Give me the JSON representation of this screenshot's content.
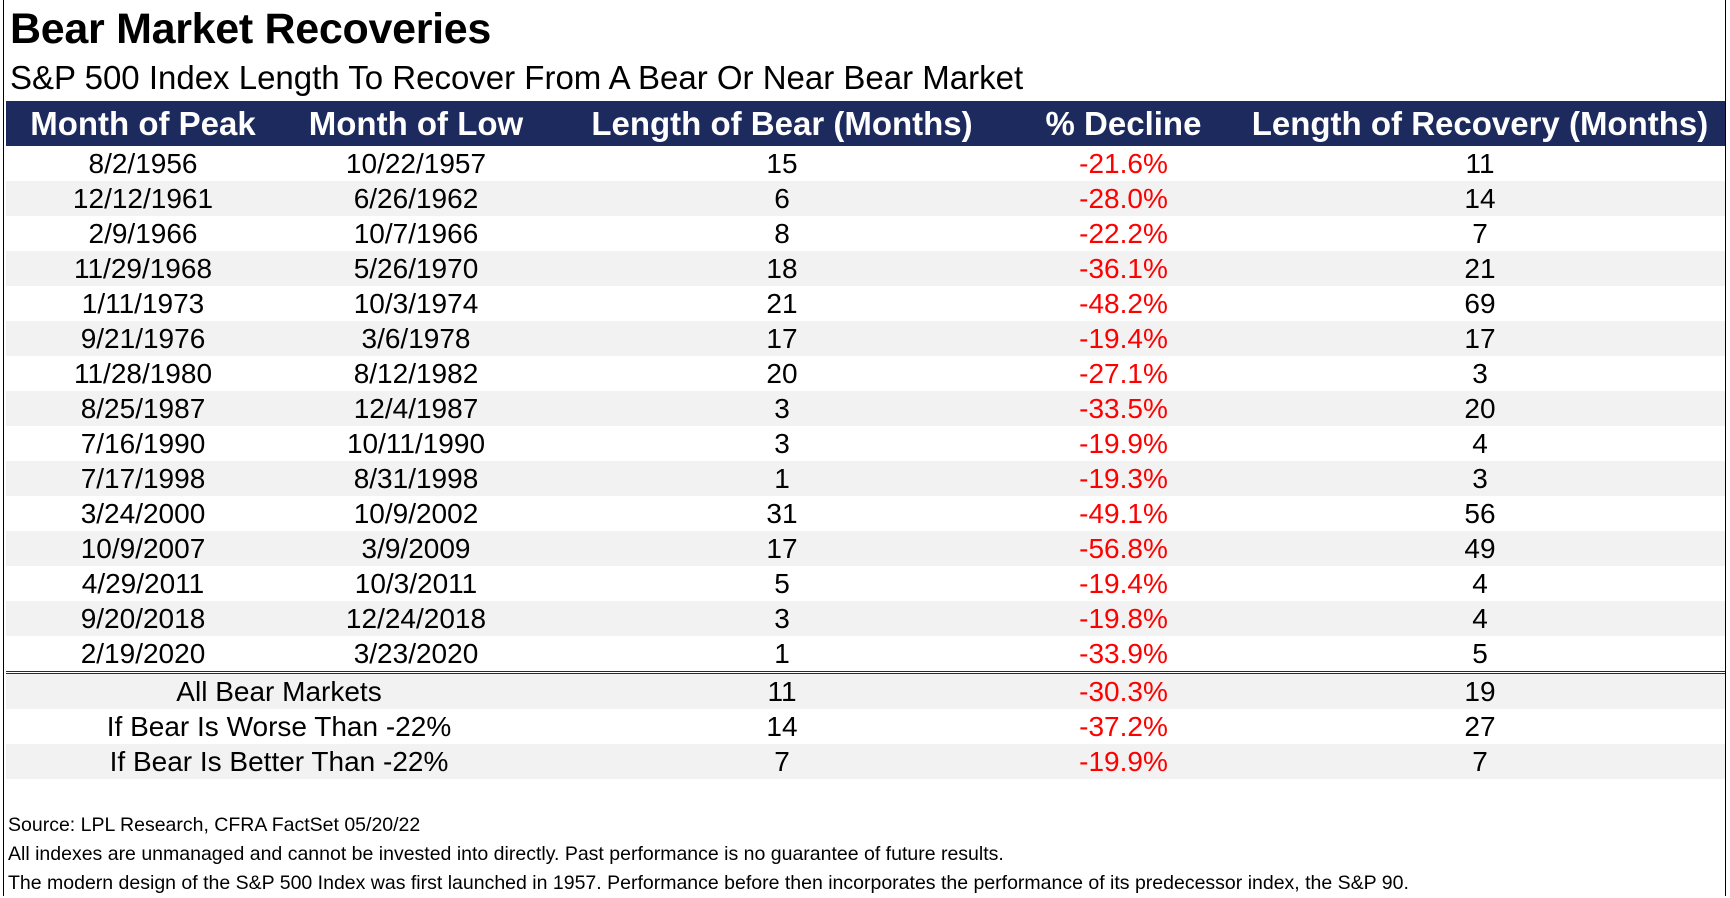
{
  "title": "Bear Market Recoveries",
  "subtitle": "S&P 500 Index Length To Recover From A Bear Or Near Bear Market",
  "colors": {
    "header_bg": "#1c2a5e",
    "negative": "#ff0000",
    "alt_row": "#f2f2f2"
  },
  "chart_data": {
    "type": "table",
    "columns": [
      "Month of Peak",
      "Month of Low",
      "Length of Bear (Months)",
      "% Decline",
      "Length of Recovery (Months)"
    ],
    "rows": [
      [
        "8/2/1956",
        "10/22/1957",
        "15",
        "-21.6%",
        "11"
      ],
      [
        "12/12/1961",
        "6/26/1962",
        "6",
        "-28.0%",
        "14"
      ],
      [
        "2/9/1966",
        "10/7/1966",
        "8",
        "-22.2%",
        "7"
      ],
      [
        "11/29/1968",
        "5/26/1970",
        "18",
        "-36.1%",
        "21"
      ],
      [
        "1/11/1973",
        "10/3/1974",
        "21",
        "-48.2%",
        "69"
      ],
      [
        "9/21/1976",
        "3/6/1978",
        "17",
        "-19.4%",
        "17"
      ],
      [
        "11/28/1980",
        "8/12/1982",
        "20",
        "-27.1%",
        "3"
      ],
      [
        "8/25/1987",
        "12/4/1987",
        "3",
        "-33.5%",
        "20"
      ],
      [
        "7/16/1990",
        "10/11/1990",
        "3",
        "-19.9%",
        "4"
      ],
      [
        "7/17/1998",
        "8/31/1998",
        "1",
        "-19.3%",
        "3"
      ],
      [
        "3/24/2000",
        "10/9/2002",
        "31",
        "-49.1%",
        "56"
      ],
      [
        "10/9/2007",
        "3/9/2009",
        "17",
        "-56.8%",
        "49"
      ],
      [
        "4/29/2011",
        "10/3/2011",
        "5",
        "-19.4%",
        "4"
      ],
      [
        "9/20/2018",
        "12/24/2018",
        "3",
        "-19.8%",
        "4"
      ],
      [
        "2/19/2020",
        "3/23/2020",
        "1",
        "-33.9%",
        "5"
      ]
    ],
    "summary": [
      {
        "label": "All Bear Markets",
        "length": "11",
        "decline": "-30.3%",
        "recovery": "19"
      },
      {
        "label": "If Bear Is Worse Than -22%",
        "length": "14",
        "decline": "-37.2%",
        "recovery": "27"
      },
      {
        "label": "If Bear Is Better Than -22%",
        "length": "7",
        "decline": "-19.9%",
        "recovery": "7"
      }
    ]
  },
  "notes": [
    "Source: LPL Research, CFRA FactSet 05/20/22",
    "All indexes are unmanaged and cannot be invested into directly. Past performance is no guarantee of future results.",
    "The modern design of the S&P 500 Index was first launched in 1957. Performance before then incorporates the performance of its predecessor index, the S&P 90."
  ]
}
